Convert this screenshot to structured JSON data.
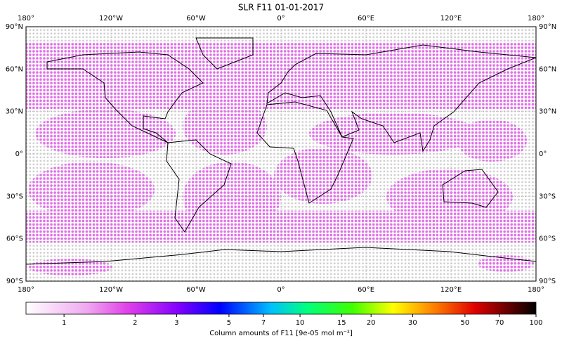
{
  "chart_data": {
    "type": "map",
    "title": "SLR F11 01-01-2017",
    "xlim": [
      -180,
      180
    ],
    "ylim": [
      -90,
      90
    ],
    "xticks": [
      {
        "value": -180,
        "label": "180°"
      },
      {
        "value": -120,
        "label": "120°W"
      },
      {
        "value": -60,
        "label": "60°W"
      },
      {
        "value": 0,
        "label": "0°"
      },
      {
        "value": 60,
        "label": "60°E"
      },
      {
        "value": 120,
        "label": "120°E"
      },
      {
        "value": 180,
        "label": "180°"
      }
    ],
    "yticks": [
      {
        "value": 90,
        "label": "90°N"
      },
      {
        "value": 60,
        "label": "60°N"
      },
      {
        "value": 30,
        "label": "30°N"
      },
      {
        "value": 0,
        "label": "0°"
      },
      {
        "value": -30,
        "label": "30°S"
      },
      {
        "value": -60,
        "label": "60°S"
      },
      {
        "value": -90,
        "label": "90°S"
      }
    ],
    "grid": true,
    "colorbar": {
      "label": "Column amounts of F11 [9e-05 mol m⁻²]",
      "scale": "log",
      "clim": [
        0.69,
        100
      ],
      "ticks": [
        1,
        2,
        3,
        5,
        7,
        10,
        15,
        20,
        30,
        50,
        70,
        100
      ]
    }
  }
}
